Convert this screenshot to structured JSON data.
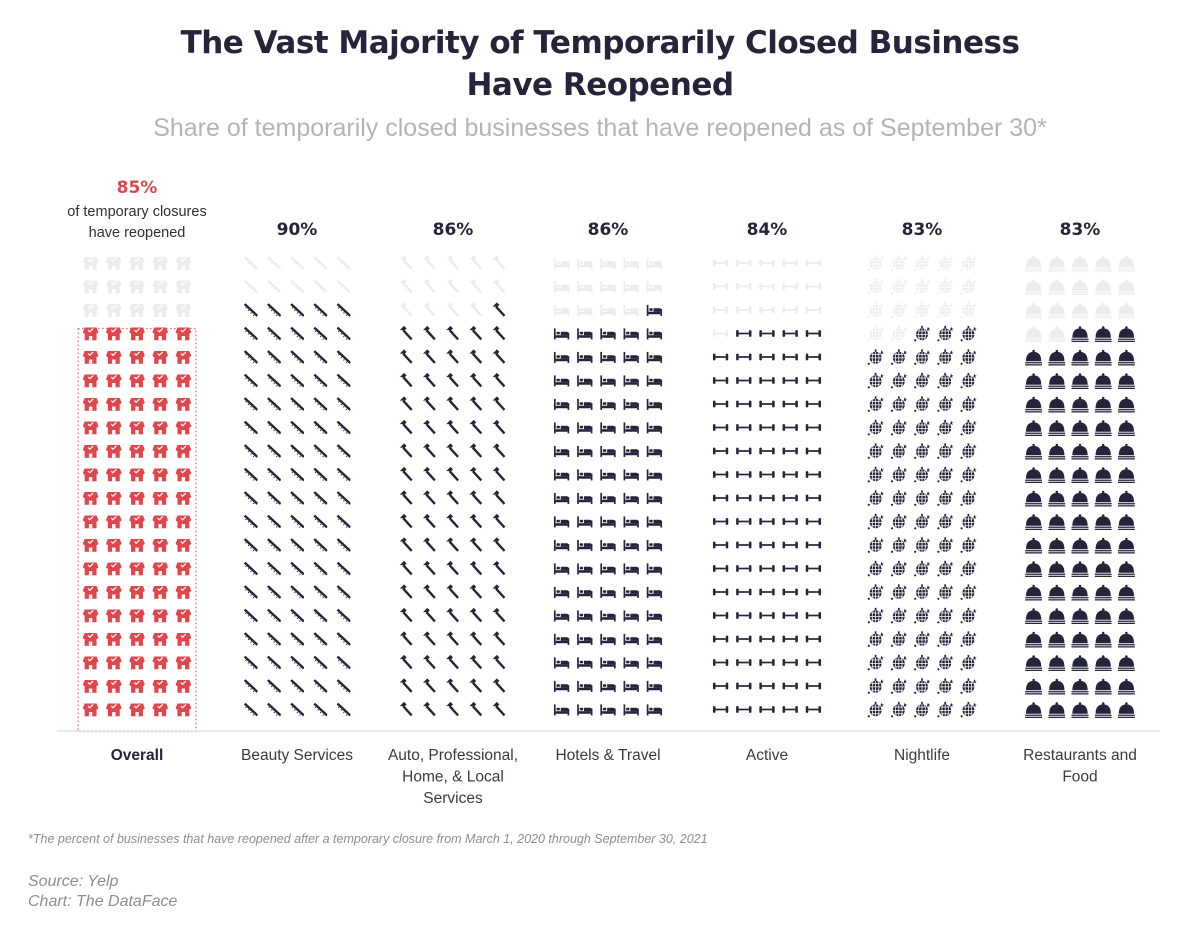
{
  "title_lines": [
    "The Vast Majority of Temporarily Closed Business",
    "Have Reopened"
  ],
  "subtitle": "Share of temporarily closed businesses that have reopened as of September 30*",
  "footnote": "*The percent of businesses that have reopened after a temporary closure from March 1, 2020 through September 30, 2021",
  "source": "Source: Yelp",
  "credit": "Chart: The DataFace",
  "colors": {
    "accent": "#e0474c",
    "filled": "#24243a",
    "empty": "#ececee",
    "accent_empty": "#ececee"
  },
  "chart_data": {
    "type": "waffle",
    "title": "The Vast Majority of Temporarily Closed Business Have Reopened",
    "subtitle": "Share of temporarily closed businesses that have reopened as of September 30*",
    "units_per_column": 100,
    "grid": {
      "columns": 5,
      "rows": 20
    },
    "fill_order": "bottom-up, left-to-right",
    "categories": [
      "Overall",
      "Beauty Services",
      "Auto, Professional, Home, & Local Services",
      "Hotels & Travel",
      "Active",
      "Nightlife",
      "Restaurants and Food"
    ],
    "values": [
      85,
      90,
      86,
      86,
      84,
      83,
      83
    ],
    "unit": "%",
    "series": [
      {
        "name": "Overall",
        "label_lines": [
          "Overall"
        ],
        "value": 85,
        "value_label": "85%",
        "note_lines": [
          "of temporary closures",
          "have reopened"
        ],
        "icon": "storefront-icon",
        "highlight": true
      },
      {
        "name": "Beauty Services",
        "label_lines": [
          "Beauty Services"
        ],
        "value": 90,
        "value_label": "90%",
        "icon": "comb-icon"
      },
      {
        "name": "Auto, Professional, Home, & Local Services",
        "label_lines": [
          "Auto, Professional,",
          "Home, & Local",
          "Services"
        ],
        "value": 86,
        "value_label": "86%",
        "icon": "hammer-icon"
      },
      {
        "name": "Hotels & Travel",
        "label_lines": [
          "Hotels & Travel"
        ],
        "value": 86,
        "value_label": "86%",
        "icon": "bed-icon"
      },
      {
        "name": "Active",
        "label_lines": [
          "Active"
        ],
        "value": 84,
        "value_label": "84%",
        "icon": "dumbbell-icon"
      },
      {
        "name": "Nightlife",
        "label_lines": [
          "Nightlife"
        ],
        "value": 83,
        "value_label": "83%",
        "icon": "disco-ball-icon"
      },
      {
        "name": "Restaurants and Food",
        "label_lines": [
          "Restaurants and",
          "Food"
        ],
        "value": 83,
        "value_label": "83%",
        "icon": "cloche-icon"
      }
    ]
  }
}
